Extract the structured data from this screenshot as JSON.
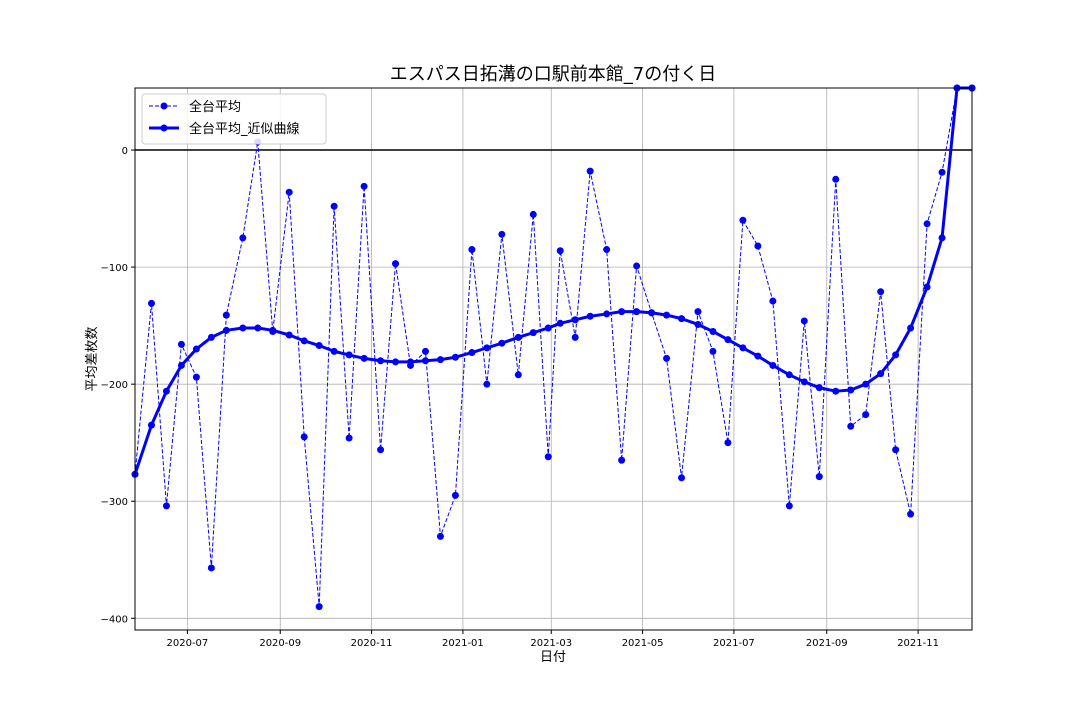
{
  "chart_data": {
    "type": "line",
    "title": "エスパス日拓溝の口駅前本館_7の付く日",
    "xlabel": "日付",
    "ylabel": "平均差枚数",
    "ylim": [
      -410,
      53
    ],
    "yticks": [
      0,
      -100,
      -200,
      -300,
      -400
    ],
    "ytick_labels": [
      "0",
      "−100",
      "−200",
      "−300",
      "−400"
    ],
    "xticks": [
      "2020-07-01",
      "2020-09-01",
      "2020-11-01",
      "2021-01-01",
      "2021-03-01",
      "2021-05-01",
      "2021-07-01",
      "2021-09-01",
      "2021-11-01"
    ],
    "xtick_labels": [
      "2020-07",
      "2020-09",
      "2020-11",
      "2021-01",
      "2021-03",
      "2021-05",
      "2021-07",
      "2021-09",
      "2021-11"
    ],
    "xlim": [
      "2020-05-27",
      "2021-12-07"
    ],
    "grid": true,
    "hline": 0,
    "legend": "top-left",
    "colors": {
      "series": "#0000ff",
      "hline": "#000000",
      "grid": "#b0b0b0"
    },
    "x": [
      "2020-05-27",
      "2020-06-07",
      "2020-06-17",
      "2020-06-27",
      "2020-07-07",
      "2020-07-17",
      "2020-07-27",
      "2020-08-07",
      "2020-08-17",
      "2020-08-27",
      "2020-09-07",
      "2020-09-17",
      "2020-09-27",
      "2020-10-07",
      "2020-10-17",
      "2020-10-27",
      "2020-11-07",
      "2020-11-17",
      "2020-11-27",
      "2020-12-07",
      "2020-12-17",
      "2020-12-27",
      "2021-01-07",
      "2021-01-17",
      "2021-01-27",
      "2021-02-07",
      "2021-02-17",
      "2021-02-27",
      "2021-03-07",
      "2021-03-17",
      "2021-03-27",
      "2021-04-07",
      "2021-04-17",
      "2021-04-27",
      "2021-05-07",
      "2021-05-17",
      "2021-05-27",
      "2021-06-07",
      "2021-06-17",
      "2021-06-27",
      "2021-07-07",
      "2021-07-17",
      "2021-07-27",
      "2021-08-07",
      "2021-08-17",
      "2021-08-27",
      "2021-09-07",
      "2021-09-17",
      "2021-09-27",
      "2021-10-07",
      "2021-10-17",
      "2021-10-27",
      "2021-11-07",
      "2021-11-17",
      "2021-11-27",
      "2021-12-07"
    ],
    "series": [
      {
        "name": "全台平均",
        "style": "dashed",
        "values": [
          -277,
          -131,
          -304,
          -166,
          -194,
          -357,
          -141,
          -75,
          7,
          -155,
          -36,
          -245,
          -390,
          -48,
          -246,
          -31,
          -256,
          -97,
          -184,
          -172,
          -330,
          -295,
          -85,
          -200,
          -72,
          -192,
          -55,
          -262,
          -86,
          -160,
          -18,
          -85,
          -265,
          -99,
          -139,
          -178,
          -280,
          -138,
          -172,
          -250,
          -60,
          -82,
          -129,
          -304,
          -146,
          -279,
          -25,
          -236,
          -226,
          -121,
          -256,
          -311,
          -63,
          -19,
          53,
          53
        ]
      },
      {
        "name": "全台平均_近似曲線",
        "style": "solid",
        "values": [
          -277,
          -235,
          -206,
          -184,
          -170,
          -160,
          -154,
          -152,
          -152,
          -154,
          -158,
          -163,
          -167,
          -172,
          -175,
          -178,
          -180,
          -181,
          -181,
          -180,
          -179,
          -177,
          -173,
          -169,
          -165,
          -160,
          -156,
          -152,
          -148,
          -145,
          -142,
          -140,
          -138,
          -138,
          -139,
          -141,
          -144,
          -149,
          -155,
          -162,
          -169,
          -176,
          -184,
          -192,
          -198,
          -203,
          -206,
          -205,
          -200,
          -191,
          -175,
          -152,
          -117,
          -75,
          53,
          53
        ]
      }
    ]
  }
}
